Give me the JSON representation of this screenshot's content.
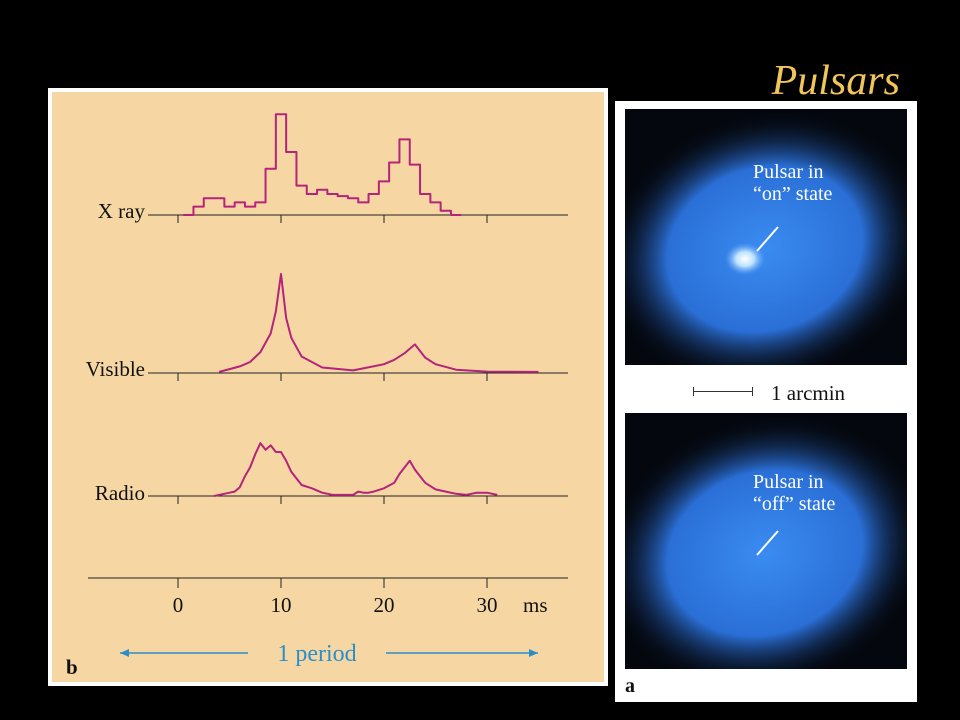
{
  "title": "Pulsars",
  "chart_data": {
    "type": "line",
    "panel_label": "b",
    "x_unit": "ms",
    "x_ticks": [
      0,
      10,
      20,
      30
    ],
    "xlim": [
      -9,
      35
    ],
    "period_label": "1 period",
    "series": [
      {
        "name": "X ray",
        "step": true,
        "x": [
          1,
          2,
          3,
          4,
          5,
          6,
          7,
          8,
          9,
          10,
          11,
          12,
          13,
          14,
          15,
          16,
          17,
          18,
          19,
          20,
          21,
          22,
          23,
          24,
          25,
          26,
          27
        ],
        "y": [
          0,
          0.4,
          0.8,
          0.8,
          0.4,
          0.6,
          0.4,
          0.6,
          2.2,
          4.8,
          3.0,
          1.4,
          1.0,
          1.2,
          1.0,
          0.9,
          0.8,
          0.6,
          1.0,
          1.6,
          2.5,
          3.6,
          2.4,
          1.0,
          0.6,
          0.2,
          0
        ]
      },
      {
        "name": "Visible",
        "x": [
          4,
          6,
          7,
          8,
          9,
          9.5,
          10,
          10.5,
          11,
          12,
          14,
          17,
          20,
          21,
          22,
          22.5,
          23,
          23.5,
          24,
          25,
          27,
          30,
          35
        ],
        "y": [
          0.05,
          0.3,
          0.5,
          0.95,
          1.8,
          2.8,
          4.5,
          2.5,
          1.6,
          0.75,
          0.25,
          0.12,
          0.4,
          0.6,
          0.9,
          1.1,
          1.3,
          1.0,
          0.7,
          0.4,
          0.15,
          0.06,
          0.05
        ]
      },
      {
        "name": "Radio",
        "x": [
          3.5,
          5,
          5.5,
          6,
          6.5,
          7,
          7.5,
          8,
          8.5,
          9,
          9.5,
          10,
          10.5,
          11,
          12,
          13,
          14,
          15,
          16,
          17,
          17.5,
          18,
          18.5,
          19,
          20,
          21,
          21.5,
          22,
          22.5,
          23,
          23.5,
          24,
          25,
          26,
          27,
          28,
          29,
          30,
          31
        ],
        "y": [
          0,
          0.15,
          0.2,
          0.4,
          0.9,
          1.3,
          1.9,
          2.4,
          2.1,
          2.3,
          2.0,
          2.0,
          1.6,
          1.1,
          0.5,
          0.35,
          0.15,
          0.05,
          0.05,
          0.05,
          0.2,
          0.15,
          0.15,
          0.2,
          0.35,
          0.6,
          1.0,
          1.3,
          1.6,
          1.2,
          0.9,
          0.6,
          0.3,
          0.2,
          0.1,
          0.05,
          0.15,
          0.15,
          0.05
        ]
      }
    ]
  },
  "right_figure": {
    "panel_label": "a",
    "on_label_line1": "Pulsar in",
    "on_label_line2": "“on” state",
    "off_label_line1": "Pulsar in",
    "off_label_line2": "“off” state",
    "scale_label": "1 arcmin",
    "colors": {
      "nebula": "#2f7fe8",
      "background": "#04070e"
    }
  },
  "colors": {
    "title": "#f2c55a",
    "panel_bg": "#f6d7a4",
    "trace": "#b5237a",
    "period": "#2a8fc9"
  }
}
